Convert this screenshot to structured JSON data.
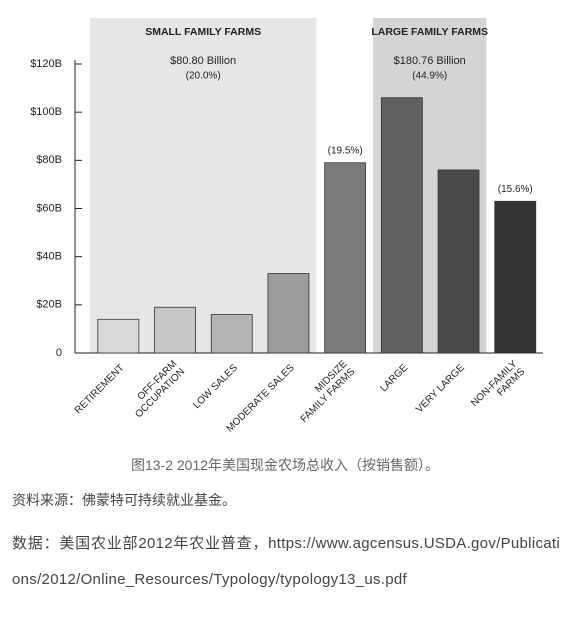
{
  "chart_data": {
    "type": "bar",
    "categories": [
      [
        "RETIREMENT"
      ],
      [
        "OFF-FARM",
        "OCCUPATION"
      ],
      [
        "LOW SALES"
      ],
      [
        "MODERATE SALES"
      ],
      [
        "MIDSIZE",
        "FAMILY FARMS"
      ],
      [
        "LARGE"
      ],
      [
        "VERY LARGE"
      ],
      [
        "NON-FAMILY",
        "FARMS"
      ]
    ],
    "values": [
      14,
      19,
      16,
      33,
      79,
      106,
      76,
      63
    ],
    "colors": [
      "#d9d9d9",
      "#c6c6c6",
      "#b4b4b4",
      "#9b9b9b",
      "#7b7b7b",
      "#606060",
      "#4a4a4a",
      "#343234"
    ],
    "ylim": [
      0,
      120
    ],
    "yticks": [
      0,
      {
        "value": 20,
        "label": "$20B"
      },
      {
        "value": 40,
        "label": "$40B"
      },
      {
        "value": 60,
        "label": "$60B"
      },
      {
        "value": 80,
        "label": "$80B"
      },
      {
        "value": 100,
        "label": "$100B"
      },
      {
        "value": 120,
        "label": "$120B"
      }
    ],
    "groups": [
      {
        "title": "SMALL FAMILY FARMS",
        "total": "$80.80 Billion",
        "share": "(20.0%)"
      },
      {
        "title": "LARGE FAMILY FARMS",
        "total": "$180.76 Billion",
        "share": "(44.9%)"
      }
    ],
    "bar_notes": [
      null,
      null,
      null,
      null,
      "(19.5%)",
      null,
      null,
      "(15.6%)"
    ]
  },
  "caption": "图13-2 2012年美国现金农场总收入（按销售额）。",
  "source": "资料来源：佛蒙特可持续就业基金。",
  "data_note": "数据：美国农业部2012年农业普查，https://www.agcensus.USDA.gov/Publications/2012/Online_Resources/Typology/typology13_us.pdf"
}
